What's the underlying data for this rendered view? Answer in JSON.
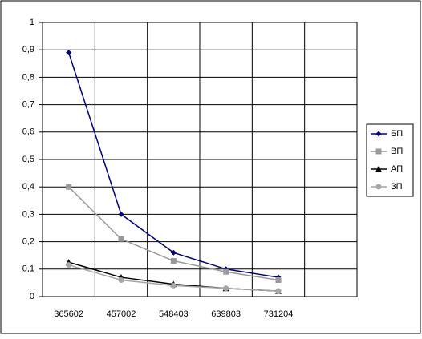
{
  "chart_data": {
    "type": "line",
    "categories": [
      "365602",
      "457002",
      "548403",
      "639803",
      "731204",
      null
    ],
    "series": [
      {
        "name": "БП",
        "color": "#000080",
        "marker": "diamond",
        "values": [
          0.89,
          0.3,
          0.16,
          0.1,
          0.07,
          null
        ]
      },
      {
        "name": "ВП",
        "color": "#999999",
        "marker": "square",
        "values": [
          0.4,
          0.21,
          0.13,
          0.09,
          0.06,
          null
        ]
      },
      {
        "name": "АП",
        "color": "#000000",
        "marker": "triangle",
        "values": [
          0.125,
          0.07,
          0.045,
          0.03,
          0.02,
          null
        ]
      },
      {
        "name": "ЗП",
        "color": "#a6a6a6",
        "marker": "circle",
        "values": [
          0.115,
          0.06,
          0.04,
          0.03,
          0.02,
          null
        ]
      }
    ],
    "ylim": [
      0,
      1
    ],
    "yticks": [
      0,
      {
        "value": 0.1,
        "label": "0,1"
      },
      {
        "value": 0.2,
        "label": "0,2"
      },
      {
        "value": 0.3,
        "label": "0,3"
      },
      {
        "value": 0.4,
        "label": "0,4"
      },
      {
        "value": 0.5,
        "label": "0,5"
      },
      {
        "value": 0.6,
        "label": "0,6"
      },
      {
        "value": 0.7,
        "label": "0,7"
      },
      {
        "value": 0.8,
        "label": "0,8"
      },
      {
        "value": 0.9,
        "label": "0,9"
      },
      1
    ],
    "grid": true,
    "legend": "right"
  }
}
